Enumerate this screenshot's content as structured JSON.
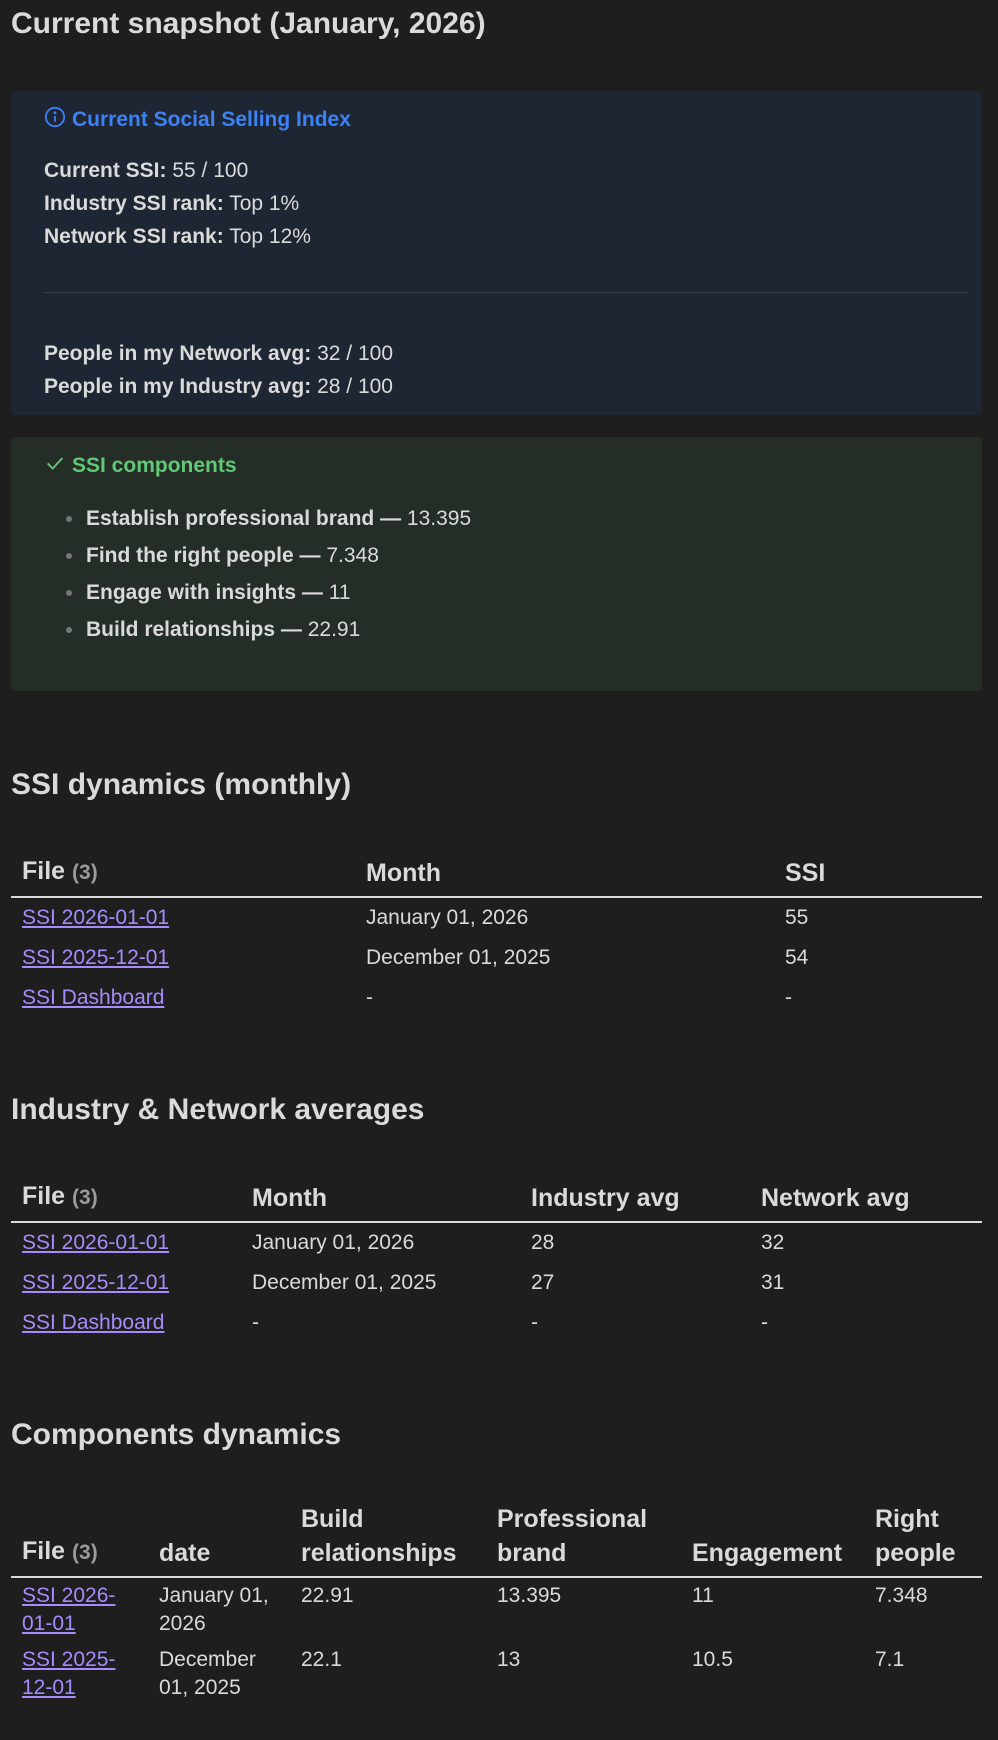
{
  "snapshot": {
    "title": "Current snapshot (January, 2026)",
    "ssi_callout": {
      "icon": "info-circle-icon",
      "title": "Current Social Selling Index",
      "lines": [
        {
          "label": "Current SSI:",
          "value": "55 / 100"
        },
        {
          "label": "Industry SSI rank:",
          "value": "Top 1%"
        },
        {
          "label": "Network SSI rank:",
          "value": "Top 12%"
        }
      ],
      "avg_lines": [
        {
          "label": "People in my Network avg:",
          "value": "32 / 100"
        },
        {
          "label": "People in my Industry avg:",
          "value": "28 / 100"
        }
      ],
      "accent": "#3b82f6"
    },
    "components_callout": {
      "icon": "check-icon",
      "title": "SSI components",
      "items": [
        {
          "label": "Establish professional brand",
          "value": "13.395"
        },
        {
          "label": "Find the right people",
          "value": "7.348"
        },
        {
          "label": "Engage with insights",
          "value": "11"
        },
        {
          "label": "Build relationships",
          "value": "22.91"
        }
      ],
      "separator": "—",
      "accent": "#60c877"
    }
  },
  "dynamics": {
    "title": "SSI dynamics (monthly)",
    "headers": {
      "file": "File",
      "count": "(3)",
      "month": "Month",
      "ssi": "SSI"
    },
    "rows": [
      {
        "file": "SSI 2026-01-01",
        "month": "January 01, 2026",
        "ssi": "55"
      },
      {
        "file": "SSI 2025-12-01",
        "month": "December 01, 2025",
        "ssi": "54"
      },
      {
        "file": "SSI Dashboard",
        "month": "-",
        "ssi": "-"
      }
    ]
  },
  "averages": {
    "title": "Industry & Network averages",
    "headers": {
      "file": "File",
      "count": "(3)",
      "month": "Month",
      "industry": "Industry avg",
      "network": "Network avg"
    },
    "rows": [
      {
        "file": "SSI 2026-01-01",
        "month": "January 01, 2026",
        "industry": "28",
        "network": "32"
      },
      {
        "file": "SSI 2025-12-01",
        "month": "December 01, 2025",
        "industry": "27",
        "network": "31"
      },
      {
        "file": "SSI Dashboard",
        "month": "-",
        "industry": "-",
        "network": "-"
      }
    ]
  },
  "components": {
    "title": "Components dynamics",
    "headers": {
      "file": "File",
      "count": "(3)",
      "date": "date",
      "build": "Build relationships",
      "brand": "Professional brand",
      "engagement": "Engagement",
      "right": "Right people"
    },
    "rows": [
      {
        "file": "SSI 2026-01-01",
        "date": "January 01, 2026",
        "build": "22.91",
        "brand": "13.395",
        "engagement": "11",
        "right": "7.348"
      },
      {
        "file": "SSI 2025-12-01",
        "date": "December 01, 2025",
        "build": "22.1",
        "brand": "13",
        "engagement": "10.5",
        "right": "7.1"
      }
    ]
  }
}
